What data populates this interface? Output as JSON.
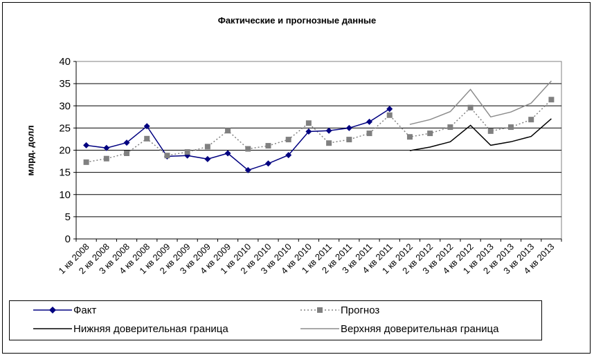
{
  "chart_data": {
    "type": "line",
    "title": "Фактические и прогнозные данные",
    "xlabel": "",
    "ylabel": "млрд. долл",
    "ylim": [
      0,
      40
    ],
    "yticks": [
      0,
      5,
      10,
      15,
      20,
      25,
      30,
      35,
      40
    ],
    "grid": true,
    "legend_position": "bottom",
    "categories": [
      "1 кв 2008",
      "2 кв 2008",
      "3 кв 2008",
      "4 кв 2008",
      "1 кв 2009",
      "2 кв 2009",
      "3 кв 2009",
      "4 кв 2009",
      "1 кв 2010",
      "2 кв 2010",
      "3 кв 2010",
      "4 кв 2010",
      "1 кв 2011",
      "2 кв 2011",
      "3 кв 2011",
      "4 кв 2011",
      "1 кв 2012",
      "2 кв 2012",
      "3 кв 2012",
      "4 кв 2012",
      "1 кв 2013",
      "2 кв 2013",
      "3 кв 2013",
      "4 кв 2013"
    ],
    "series": [
      {
        "name": "Факт",
        "color": "#000080",
        "style": "solid-diamond",
        "values": [
          21.1,
          20.5,
          21.7,
          25.4,
          18.6,
          18.8,
          18.0,
          19.3,
          15.5,
          17.0,
          18.9,
          24.2,
          24.4,
          25.0,
          26.4,
          29.3,
          null,
          null,
          null,
          null,
          null,
          null,
          null,
          null
        ]
      },
      {
        "name": "Прогноз",
        "color": "#808080",
        "style": "dotted-square",
        "values": [
          17.3,
          18.1,
          19.3,
          22.6,
          18.8,
          19.6,
          20.8,
          24.4,
          20.3,
          21.0,
          22.4,
          26.1,
          21.6,
          22.4,
          23.8,
          27.9,
          23.0,
          23.8,
          25.2,
          29.6,
          24.3,
          25.2,
          26.9,
          31.4
        ]
      },
      {
        "name": "Нижняя доверительная граница",
        "color": "#000000",
        "style": "solid",
        "values": [
          null,
          null,
          null,
          null,
          null,
          null,
          null,
          null,
          null,
          null,
          null,
          null,
          null,
          null,
          null,
          null,
          19.9,
          20.7,
          21.9,
          25.6,
          21.1,
          21.9,
          23.1,
          27.1
        ]
      },
      {
        "name": "Верхняя доверительная граница",
        "color": "#8c8c8c",
        "style": "solid",
        "values": [
          null,
          null,
          null,
          null,
          null,
          null,
          null,
          null,
          null,
          null,
          null,
          null,
          null,
          null,
          null,
          null,
          25.8,
          26.9,
          28.7,
          33.7,
          27.5,
          28.6,
          30.6,
          35.6
        ]
      }
    ]
  }
}
